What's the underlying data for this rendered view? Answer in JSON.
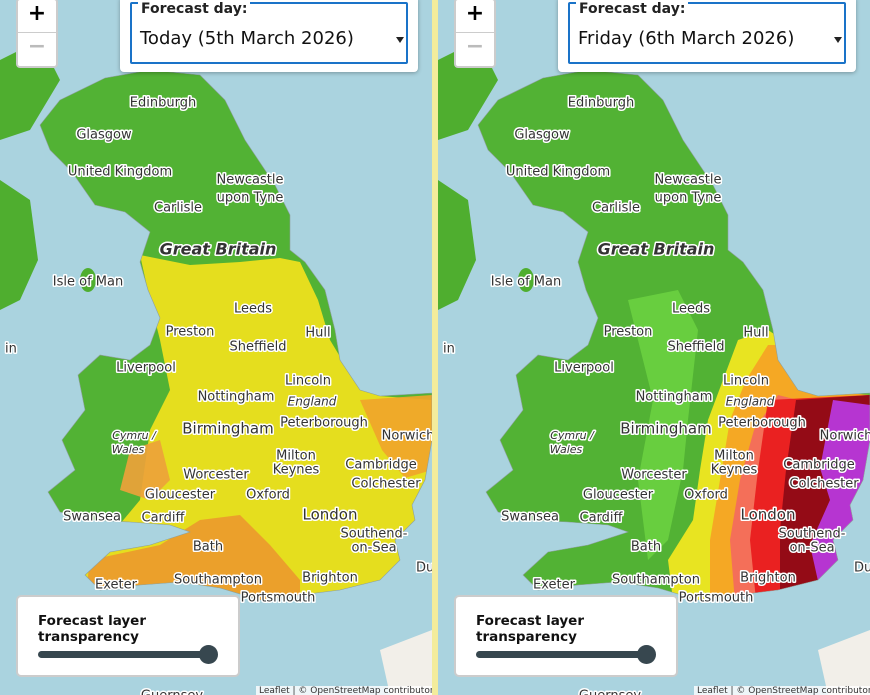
{
  "panels": [
    {
      "zoom_in": "+",
      "zoom_out": "−",
      "forecast_label": "Forecast day:",
      "forecast_day": "Today (5th March 2026)",
      "transparency_label": "Forecast layer transparency",
      "attribution": "Leaflet | © OpenStreetMap contributors"
    },
    {
      "zoom_in": "+",
      "zoom_out": "−",
      "forecast_label": "Forecast day:",
      "forecast_day": "Friday (6th March 2026)",
      "transparency_label": "Forecast layer transparency",
      "attribution": "Leaflet | © OpenStreetMap contributors"
    }
  ],
  "map_labels": [
    "Edinburgh",
    "Glasgow",
    "United Kingdom",
    "Newcastle",
    "upon Tyne",
    "Carlisle",
    "Great Britain",
    "Isle of Man",
    "Leeds",
    "Preston",
    "Sheffield",
    "Hull",
    "Liverpool",
    "Lincoln",
    "Nottingham",
    "England",
    "Birmingham",
    "Peterborough",
    "Norwich",
    "Cymru /",
    "Wales",
    "Milton",
    "Keynes",
    "Cambridge",
    "Worcester",
    "Colchester",
    "Gloucester",
    "Oxford",
    "Swansea",
    "Cardiff",
    "London",
    "Southend-",
    "on-Sea",
    "Bath",
    "Dunk",
    "Exeter",
    "Southampton",
    "Brighton",
    "Portsmouth",
    "in",
    "Guernsey"
  ]
}
